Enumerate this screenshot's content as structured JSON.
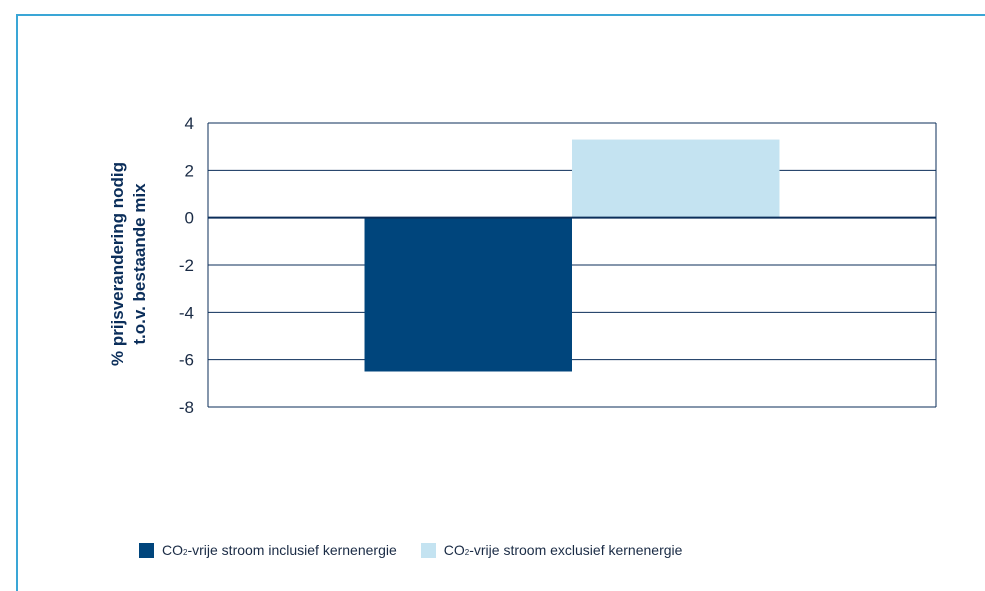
{
  "chart_data": {
    "type": "bar",
    "title": "",
    "xlabel": "",
    "ylabel_line1": "% prijsverandering nodig",
    "ylabel_line2": "t.o.v. bestaande mix",
    "ylim": [
      -8,
      4
    ],
    "yticks": [
      4,
      2,
      0,
      -2,
      -4,
      -6,
      -8
    ],
    "ytick_labels": [
      "4",
      "2",
      "0",
      "-2",
      "-4",
      "-6",
      "-8"
    ],
    "categories": [
      ""
    ],
    "series": [
      {
        "name": "CO2-vrije stroom inclusief kernenergie",
        "legend_prefix": "CO",
        "legend_sub": "2",
        "legend_suffix": "-vrije stroom inclusief kernenergie",
        "color": "#00457c",
        "values": [
          -6.5
        ]
      },
      {
        "name": "CO2-vrije stroom exclusief kernenergie",
        "legend_prefix": "CO",
        "legend_sub": "2",
        "legend_suffix": "-vrije stroom exclusief kernenergie",
        "color": "#c4e3f1",
        "values": [
          3.3
        ]
      }
    ],
    "grid": true,
    "legend_position": "bottom-left"
  }
}
